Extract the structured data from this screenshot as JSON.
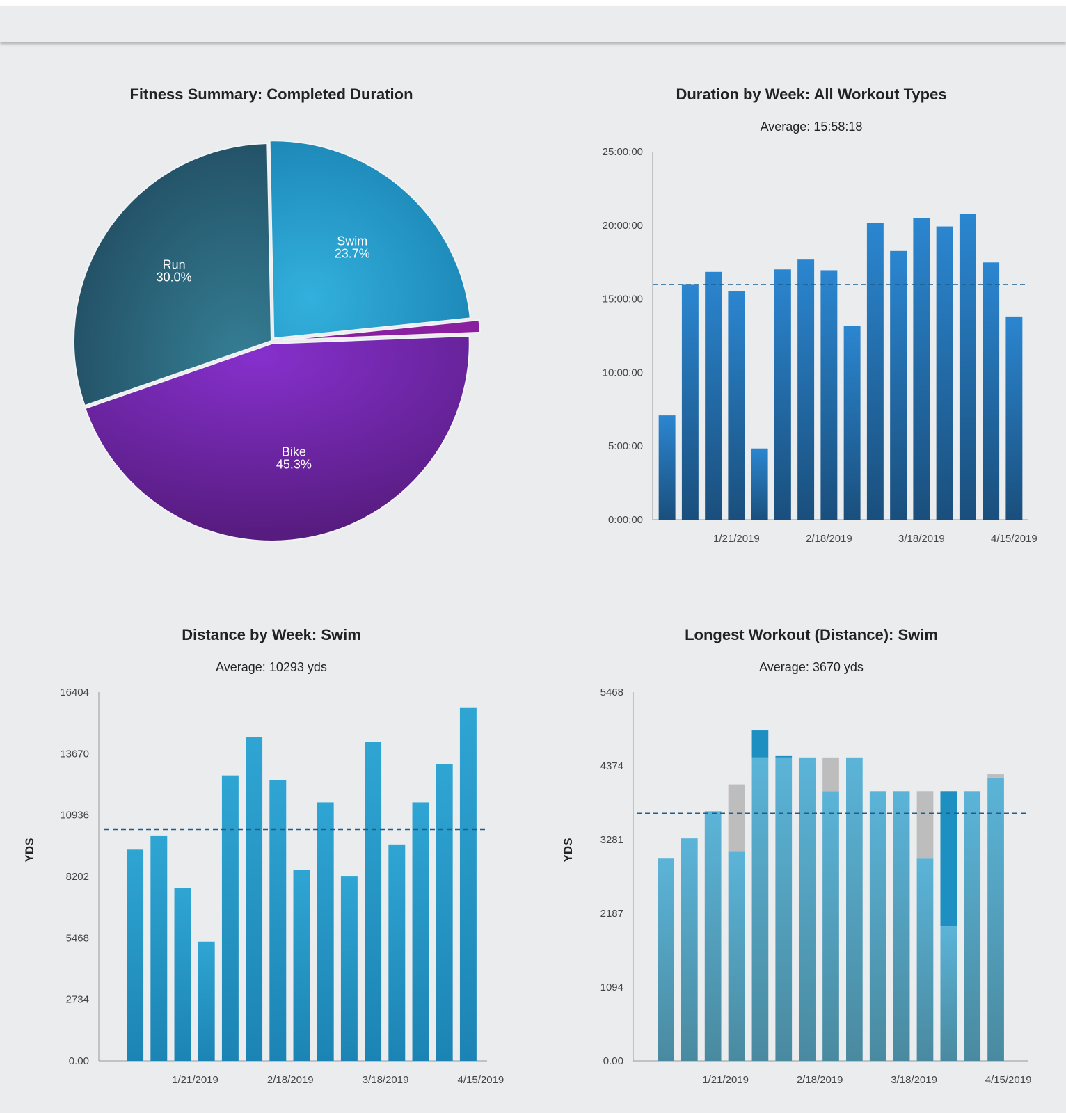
{
  "chart_data": [
    {
      "type": "pie",
      "title": "Fitness Summary: Completed Duration",
      "slices": [
        {
          "name": "Swim",
          "value": 23.7,
          "label": "23.7%",
          "color": "#2a9bcf"
        },
        {
          "name": "",
          "value": 1.0,
          "label": "",
          "color": "#8a1fa0"
        },
        {
          "name": "Bike",
          "value": 45.3,
          "label": "45.3%",
          "color": "#6a24a0"
        },
        {
          "name": "Run",
          "value": 30.0,
          "label": "30.0%",
          "color": "#2a6478"
        }
      ]
    },
    {
      "type": "bar",
      "title": "Duration by Week: All Workout Types",
      "subtitle": "Average: 15:58:18",
      "average_seconds": 57498,
      "yticks": [
        "0:00:00",
        "5:00:00",
        "10:00:00",
        "15:00:00",
        "20:00:00",
        "25:00:00"
      ],
      "ylim_seconds": [
        0,
        90000
      ],
      "xticks": [
        "1/21/2019",
        "2/18/2019",
        "3/18/2019",
        "4/15/2019"
      ],
      "xtick_bar_index": [
        3,
        7,
        11,
        15
      ],
      "values_seconds": [
        25500,
        57600,
        60600,
        55800,
        17400,
        61200,
        63600,
        61000,
        47400,
        72600,
        65700,
        73800,
        71700,
        74700,
        62900,
        49700
      ],
      "color": "#2277bb"
    },
    {
      "type": "bar",
      "title": "Distance by Week: Swim",
      "subtitle": "Average: 10293 yds",
      "average": 10293,
      "ylabel": "YDS",
      "yticks": [
        "0.00",
        "2734",
        "5468",
        "8202",
        "10936",
        "13670",
        "16404"
      ],
      "ylim": [
        0,
        16404
      ],
      "xticks": [
        "1/21/2019",
        "2/18/2019",
        "3/18/2019",
        "4/15/2019"
      ],
      "xtick_bar_index": [
        2,
        6,
        10,
        14
      ],
      "values": [
        9400,
        10000,
        7700,
        5300,
        12700,
        14400,
        12500,
        8500,
        11500,
        8200,
        14200,
        9600,
        11500,
        13200,
        15700
      ],
      "color": "#2b9fce"
    },
    {
      "type": "bar",
      "title": "Longest Workout (Distance): Swim",
      "subtitle": "Average: 3670 yds",
      "average": 3670,
      "ylabel": "YDS",
      "yticks": [
        "0.00",
        "1094",
        "2187",
        "3281",
        "4374",
        "5468"
      ],
      "ylim": [
        0,
        5468
      ],
      "xticks": [
        "1/21/2019",
        "2/18/2019",
        "3/18/2019",
        "4/15/2019"
      ],
      "xtick_bar_index": [
        2,
        6,
        10,
        14
      ],
      "series_colors": {
        "base": "#52a9cb",
        "blue_top": "#1d8fc0",
        "gray_top": "#bdbdbd"
      },
      "bars": [
        {
          "base": 3000,
          "top": 0,
          "top_type": ""
        },
        {
          "base": 3300,
          "top": 0,
          "top_type": ""
        },
        {
          "base": 3700,
          "top": 0,
          "top_type": ""
        },
        {
          "base": 3100,
          "top": 1000,
          "top_type": "gray"
        },
        {
          "base": 4500,
          "top": 400,
          "top_type": "blue"
        },
        {
          "base": 4500,
          "top": 20,
          "top_type": "blue"
        },
        {
          "base": 4500,
          "top": 0,
          "top_type": ""
        },
        {
          "base": 4000,
          "top": 500,
          "top_type": "gray"
        },
        {
          "base": 4500,
          "top": 0,
          "top_type": ""
        },
        {
          "base": 4000,
          "top": 0,
          "top_type": ""
        },
        {
          "base": 4000,
          "top": 0,
          "top_type": ""
        },
        {
          "base": 3000,
          "top": 1000,
          "top_type": "gray"
        },
        {
          "base": 2000,
          "top": 2000,
          "top_type": "blue"
        },
        {
          "base": 4000,
          "top": 0,
          "top_type": ""
        },
        {
          "base": 4200,
          "top": 50,
          "top_type": "gray"
        }
      ]
    }
  ]
}
